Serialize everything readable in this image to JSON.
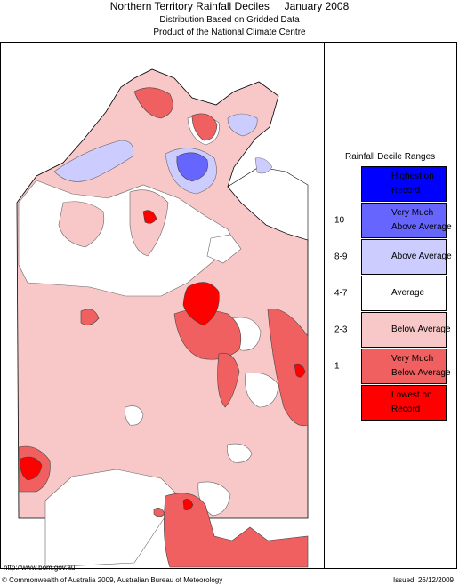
{
  "header": {
    "title_left": "Northern Territory Rainfall Deciles",
    "title_right": "January 2008",
    "line2": "Distribution Based on Gridded Data",
    "line3": "Product of the National Climate Centre"
  },
  "legend": {
    "title": "Rainfall Decile Ranges",
    "items": [
      {
        "range": "",
        "label": "Highest on\nRecord",
        "color": "#0000ff"
      },
      {
        "range": "10",
        "label": "Very Much\nAbove Average",
        "color": "#6666ff"
      },
      {
        "range": "8-9",
        "label": "Above Average",
        "color": "#ccccff"
      },
      {
        "range": "4-7",
        "label": "Average",
        "color": "#ffffff"
      },
      {
        "range": "2-3",
        "label": "Below Average",
        "color": "#f8c8c8"
      },
      {
        "range": "1",
        "label": "Very Much\nBelow Average",
        "color": "#f06060"
      },
      {
        "range": "",
        "label": "Lowest on\nRecord",
        "color": "#ff0000"
      }
    ]
  },
  "footer": {
    "url": "http://www.bom.gov.au",
    "copyright": "© Commonwealth of Australia 2009, Australian Bureau of Meteorology",
    "issued": "Issued: 26/12/2009"
  }
}
